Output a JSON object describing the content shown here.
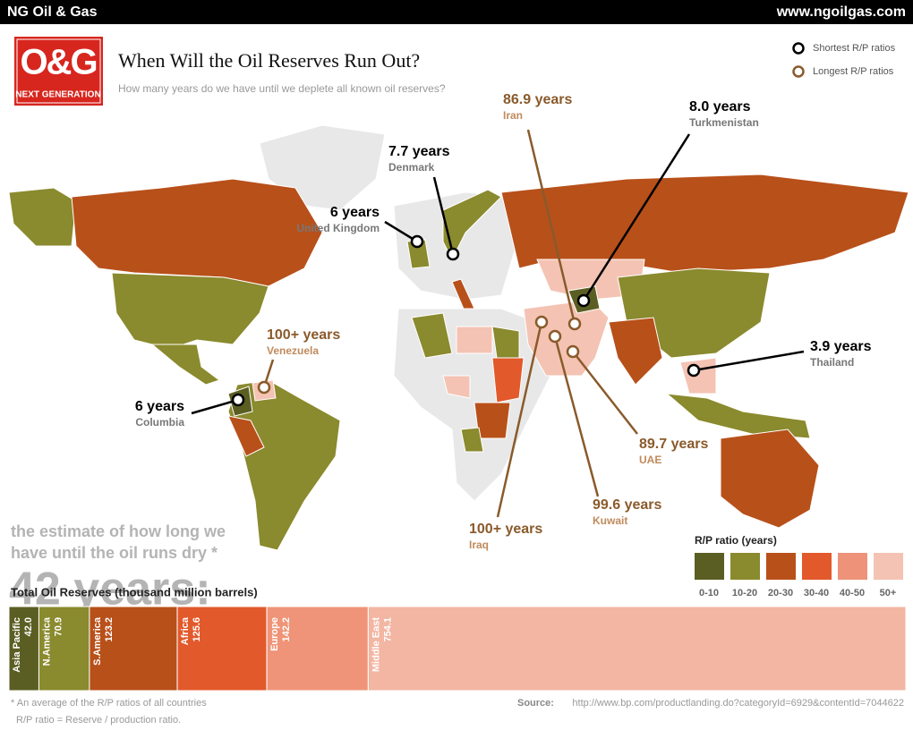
{
  "header": {
    "brand": "NG Oil & Gas",
    "url": "www.ngoilgas.com"
  },
  "logo": {
    "mark": "O&G",
    "tagline": "NEXT GENERATION"
  },
  "title": "When Will the Oil Reserves Run Out?",
  "subtitle": "How many years do we have until we deplete all known oil reserves?",
  "legend": {
    "items": [
      {
        "label": "Shortest R/P ratios",
        "color": "#000000"
      },
      {
        "label": "Longest R/P ratios",
        "color": "#8a5a2b"
      }
    ]
  },
  "callouts": [
    {
      "years": "86.9 years",
      "country": "Iran",
      "color": "#8a5a2b"
    },
    {
      "years": "8.0 years",
      "country": "Turkmenistan",
      "color": "#000000"
    },
    {
      "years": "7.7 years",
      "country": "Denmark",
      "color": "#000000"
    },
    {
      "years": "6 years",
      "country": "United Kingdom",
      "color": "#000000"
    },
    {
      "years": "100+ years",
      "country": "Venezuela",
      "color": "#8a5a2b"
    },
    {
      "years": "6 years",
      "country": "Columbia",
      "color": "#000000"
    },
    {
      "years": "3.9 years",
      "country": "Thailand",
      "color": "#000000"
    },
    {
      "years": "89.7 years",
      "country": "UAE",
      "color": "#8a5a2b"
    },
    {
      "years": "99.6 years",
      "country": "Kuwait",
      "color": "#8a5a2b"
    },
    {
      "years": "100+ years",
      "country": "Iraq",
      "color": "#8a5a2b"
    }
  ],
  "headline": {
    "big": "42 years:",
    "text": "the estimate of how long we have until the oil runs dry *"
  },
  "scale": {
    "title": "R/P ratio (years)",
    "bins": [
      {
        "label": "0-10",
        "color": "#5b5e23"
      },
      {
        "label": "10-20",
        "color": "#8a8a2e"
      },
      {
        "label": "20-30",
        "color": "#b8501a"
      },
      {
        "label": "30-40",
        "color": "#e2592b"
      },
      {
        "label": "40-50",
        "color": "#ee937a"
      },
      {
        "label": "50+",
        "color": "#f4c3b3"
      }
    ]
  },
  "chart_data": {
    "type": "stacked-bar",
    "title": "Total Oil Reserves (thousand million barrels)",
    "categories": [
      "Asia Pacific",
      "N.America",
      "S.America",
      "Africa",
      "Europe",
      "Middle East"
    ],
    "values": [
      42.0,
      70.9,
      123.2,
      125.6,
      142.2,
      754.1
    ],
    "value_labels": [
      "42.0",
      "70.9",
      "123.2",
      "125.6",
      "142.2",
      "754.1"
    ],
    "colors": [
      "#5b5e23",
      "#8a8a2e",
      "#b8501a",
      "#e2592b",
      "#ef9478",
      "#f2b6a2"
    ]
  },
  "footnotes": [
    "* An average of the R/P ratios of all countries",
    "R/P ratio = Reserve / production ratio."
  ],
  "source": {
    "label": "Source:",
    "url": "http://www.bp.com/productlanding.do?categoryId=6929&contentId=7044622"
  }
}
